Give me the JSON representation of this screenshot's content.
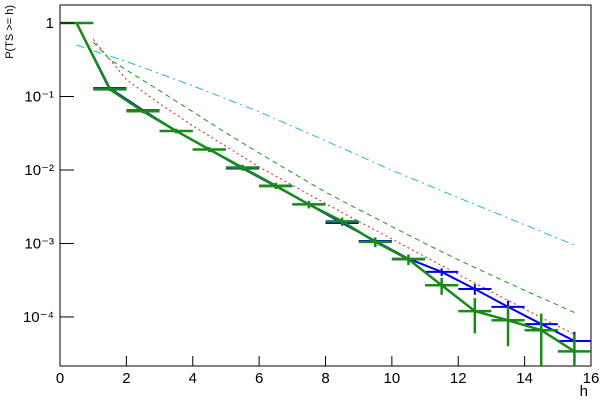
{
  "chart_data": {
    "type": "line",
    "xlabel": "h",
    "ylabel": "P(TS >= h)",
    "xlim": [
      0,
      16
    ],
    "xticks": [
      0,
      2,
      4,
      6,
      8,
      10,
      12,
      14,
      16
    ],
    "ylim": [
      2.15e-05,
      1.76
    ],
    "log_y": true,
    "yticks": [
      1,
      {
        "value": 0.1,
        "label": "10⁻¹"
      },
      {
        "value": 0.01,
        "label": "10⁻²"
      },
      {
        "value": 0.001,
        "label": "10⁻³"
      },
      {
        "value": 0.0001,
        "label": "10⁻⁴"
      }
    ],
    "series": [
      {
        "style": "dotted",
        "color": "#cc2222",
        "x": [
          1,
          2,
          3,
          4,
          5,
          6,
          7,
          8,
          9,
          10,
          11,
          12,
          13,
          14,
          15,
          15.5
        ],
        "values": [
          0.6,
          0.17,
          0.08,
          0.04,
          0.021,
          0.011,
          0.0062,
          0.0035,
          0.002,
          0.00115,
          0.00066,
          0.00038,
          0.00022,
          0.000128,
          7.5e-05,
          5.8e-05
        ]
      },
      {
        "style": "dashed",
        "color": "#1a9a1a",
        "x": [
          1,
          1.5,
          2,
          3,
          4,
          5,
          6,
          7,
          8,
          9,
          10,
          11,
          12,
          13,
          14,
          15,
          15.5
        ],
        "values": [
          0.55,
          0.32,
          0.23,
          0.12,
          0.062,
          0.032,
          0.017,
          0.0092,
          0.005,
          0.0029,
          0.0017,
          0.001,
          0.0006,
          0.00037,
          0.00023,
          0.000145,
          0.000115
        ]
      },
      {
        "style": "dashdot",
        "color": "#22b8d0",
        "x": [
          0.5,
          2,
          4,
          6,
          8,
          10,
          12,
          14,
          15.5
        ],
        "values": [
          0.5,
          0.3,
          0.14,
          0.062,
          0.025,
          0.0099,
          0.0042,
          0.0018,
          0.00095
        ]
      },
      {
        "style": "errorbar-line",
        "color": "#0000ee",
        "width": 2,
        "xerr": 0.5,
        "x": [
          0.5,
          1.5,
          2.5,
          3.5,
          4.5,
          5.5,
          6.5,
          7.5,
          8.5,
          9.5,
          10.5,
          11.5,
          12.5,
          13.5,
          14.5,
          15.5
        ],
        "values": [
          1,
          0.13,
          0.065,
          0.034,
          0.019,
          0.0105,
          0.006,
          0.0034,
          0.0019,
          0.00108,
          0.00062,
          0.00041,
          0.00024,
          0.000137,
          8e-05,
          4.7e-05
        ],
        "errors": [
          0.005,
          0.004,
          0.0025,
          0.0015,
          0.0009,
          0.0006,
          0.0004,
          0.00025,
          0.00016,
          0.0001,
          7e-05,
          5e-05,
          4e-05,
          3e-05,
          2.2e-05,
          1.6e-05
        ]
      },
      {
        "style": "errorbar-line",
        "color": "#178a17",
        "width": 2.5,
        "xerr": 0.5,
        "x": [
          0.5,
          1.5,
          2.5,
          3.5,
          4.5,
          5.5,
          6.5,
          7.5,
          8.5,
          9.5,
          10.5,
          11.5,
          12.5,
          13.5,
          14.5,
          15.5
        ],
        "values": [
          1,
          0.125,
          0.063,
          0.034,
          0.019,
          0.0108,
          0.0061,
          0.0034,
          0.002,
          0.00105,
          0.00061,
          0.00027,
          0.00012,
          9e-05,
          6.6e-05,
          3.4e-05
        ],
        "errors": [
          0.01,
          0.006,
          0.004,
          0.0025,
          0.0015,
          0.001,
          0.0006,
          0.0004,
          0.00025,
          0.00016,
          0.0001,
          7e-05,
          6e-05,
          5e-05,
          4.5e-05,
          2.5e-05
        ]
      }
    ]
  }
}
